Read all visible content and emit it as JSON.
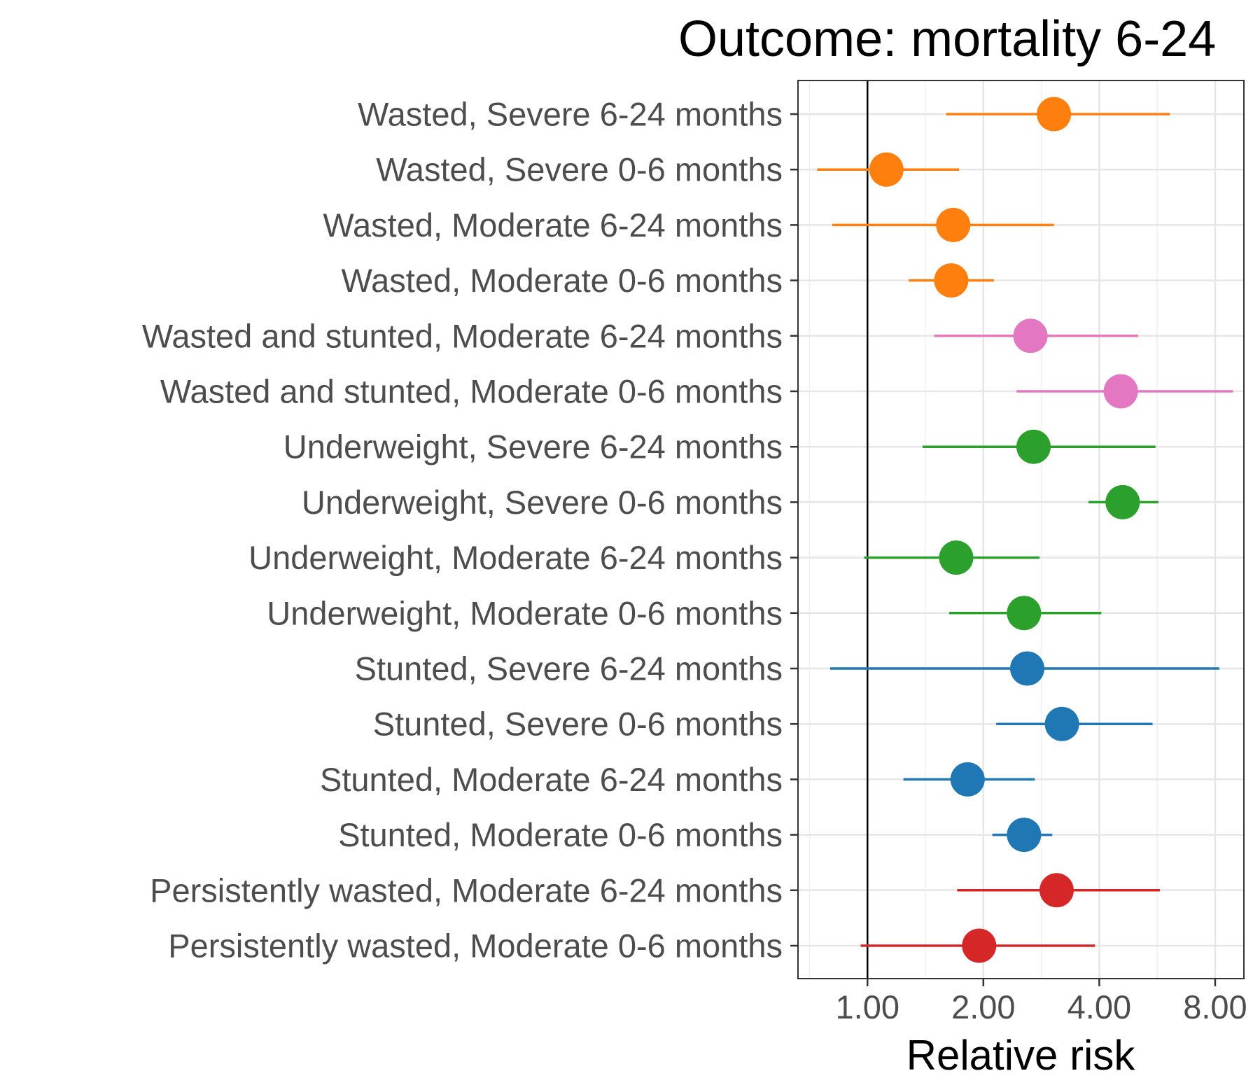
{
  "chart_data": {
    "type": "scatter",
    "title": "Outcome: mortality 6-24",
    "xlabel": "Relative risk",
    "ylabel": "",
    "x_scale": "log2",
    "xlim": [
      0.66,
      9.5
    ],
    "x_ticks": [
      1,
      2,
      4,
      8
    ],
    "x_tick_labels": [
      "1.00",
      "2.00",
      "4.00",
      "8.00"
    ],
    "reference_line": 1,
    "grid": true,
    "legend": "none",
    "colors": {
      "Wasted": "#ff7f0e",
      "Wasted and stunted": "#e377c2",
      "Underweight": "#2ca02c",
      "Stunted": "#1f77b4",
      "Persistently wasted": "#d62728"
    },
    "rows": [
      {
        "label": "Wasted, Severe 6-24 months",
        "group": "Wasted",
        "estimate": 3.05,
        "lower": 1.6,
        "upper": 6.1
      },
      {
        "label": "Wasted, Severe 0-6 months",
        "group": "Wasted",
        "estimate": 1.12,
        "lower": 0.74,
        "upper": 1.73
      },
      {
        "label": "Wasted, Moderate 6-24 months",
        "group": "Wasted",
        "estimate": 1.67,
        "lower": 0.81,
        "upper": 3.05
      },
      {
        "label": "Wasted, Moderate 0-6 months",
        "group": "Wasted",
        "estimate": 1.65,
        "lower": 1.28,
        "upper": 2.13
      },
      {
        "label": "Wasted and stunted, Moderate 6-24 months",
        "group": "Wasted and stunted",
        "estimate": 2.65,
        "lower": 1.49,
        "upper": 5.05
      },
      {
        "label": "Wasted and stunted, Moderate 0-6 months",
        "group": "Wasted and stunted",
        "estimate": 4.55,
        "lower": 2.44,
        "upper": 8.9
      },
      {
        "label": "Underweight, Severe 6-24 months",
        "group": "Underweight",
        "estimate": 2.7,
        "lower": 1.39,
        "upper": 5.6
      },
      {
        "label": "Underweight, Severe 0-6 months",
        "group": "Underweight",
        "estimate": 4.6,
        "lower": 3.75,
        "upper": 5.7
      },
      {
        "label": "Underweight, Moderate 6-24 months",
        "group": "Underweight",
        "estimate": 1.7,
        "lower": 0.98,
        "upper": 2.8
      },
      {
        "label": "Underweight, Moderate 0-6 months",
        "group": "Underweight",
        "estimate": 2.55,
        "lower": 1.63,
        "upper": 4.05
      },
      {
        "label": "Stunted, Severe 6-24 months",
        "group": "Stunted",
        "estimate": 2.6,
        "lower": 0.8,
        "upper": 8.2
      },
      {
        "label": "Stunted, Severe 0-6 months",
        "group": "Stunted",
        "estimate": 3.2,
        "lower": 2.16,
        "upper": 5.5
      },
      {
        "label": "Stunted, Moderate 6-24 months",
        "group": "Stunted",
        "estimate": 1.82,
        "lower": 1.24,
        "upper": 2.72
      },
      {
        "label": "Stunted, Moderate 0-6 months",
        "group": "Stunted",
        "estimate": 2.55,
        "lower": 2.11,
        "upper": 3.02
      },
      {
        "label": "Persistently wasted, Moderate 6-24 months",
        "group": "Persistently wasted",
        "estimate": 3.1,
        "lower": 1.71,
        "upper": 5.75
      },
      {
        "label": "Persistently wasted, Moderate 0-6 months",
        "group": "Persistently wasted",
        "estimate": 1.95,
        "lower": 0.96,
        "upper": 3.9
      }
    ]
  }
}
